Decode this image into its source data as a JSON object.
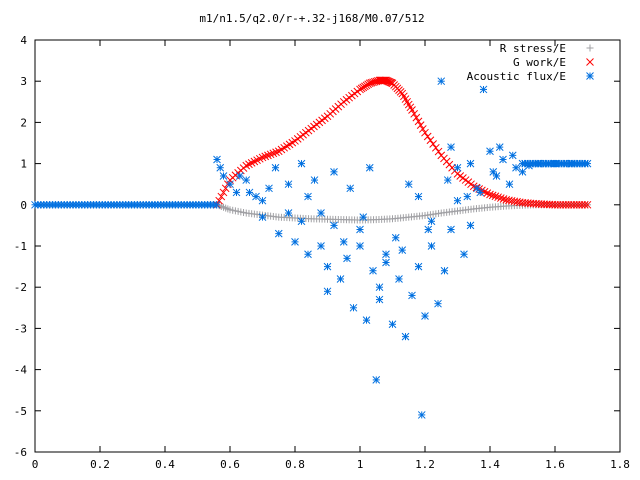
{
  "chart_data": {
    "type": "scatter",
    "title": "m1/n1.5/q2.0/r-+.32-j168/M0.07/512",
    "xlabel": "",
    "ylabel": "",
    "xlim": [
      0,
      1.8
    ],
    "ylim": [
      -6,
      4
    ],
    "xticks": [
      "0",
      "0.2",
      "0.4",
      "0.6",
      "0.8",
      "1",
      "1.2",
      "1.4",
      "1.6",
      "1.8"
    ],
    "yticks": [
      "4",
      "3",
      "2",
      "1",
      "0",
      "-1",
      "-2",
      "-3",
      "-4",
      "-5",
      "-6"
    ],
    "grid": false,
    "legend_position": "top-right",
    "series": [
      {
        "name": "R stress/E",
        "marker": "plus",
        "color": "#a0a0a4",
        "x": [
          0.56,
          0.6,
          0.65,
          0.7,
          0.75,
          0.8,
          0.85,
          0.9,
          0.95,
          1.0,
          1.05,
          1.1,
          1.15,
          1.2,
          1.25,
          1.3,
          1.35,
          1.4,
          1.45,
          1.5,
          1.55,
          1.6,
          1.65,
          1.7
        ],
        "y": [
          0.0,
          -0.12,
          -0.2,
          -0.25,
          -0.3,
          -0.32,
          -0.34,
          -0.35,
          -0.36,
          -0.37,
          -0.36,
          -0.34,
          -0.3,
          -0.26,
          -0.2,
          -0.15,
          -0.1,
          -0.06,
          -0.03,
          -0.01,
          0.0,
          0.0,
          0.0,
          0.0
        ]
      },
      {
        "name": "G work/E",
        "marker": "cross",
        "color": "#ff0000",
        "x": [
          0.56,
          0.6,
          0.65,
          0.7,
          0.75,
          0.8,
          0.85,
          0.9,
          0.95,
          1.0,
          1.03,
          1.06,
          1.08,
          1.1,
          1.13,
          1.16,
          1.2,
          1.25,
          1.3,
          1.35,
          1.4,
          1.45,
          1.5,
          1.55,
          1.6,
          1.65,
          1.7
        ],
        "y": [
          0.0,
          0.6,
          0.95,
          1.15,
          1.3,
          1.55,
          1.85,
          2.15,
          2.5,
          2.8,
          2.95,
          3.02,
          3.02,
          2.95,
          2.7,
          2.3,
          1.75,
          1.2,
          0.75,
          0.45,
          0.25,
          0.12,
          0.05,
          0.02,
          0.0,
          0.0,
          0.0
        ]
      },
      {
        "name": "Acoustic flux/E",
        "marker": "star",
        "color": "#0070e0",
        "x": [
          0.56,
          0.57,
          0.58,
          0.6,
          0.62,
          0.65,
          0.68,
          0.7,
          0.72,
          0.75,
          0.78,
          0.8,
          0.82,
          0.84,
          0.86,
          0.88,
          0.9,
          0.92,
          0.94,
          0.96,
          0.98,
          1.0,
          1.02,
          1.04,
          1.05,
          1.06,
          1.08,
          1.1,
          1.12,
          1.14,
          1.16,
          1.18,
          1.19,
          1.2,
          1.22,
          1.24,
          1.25,
          1.26,
          1.28,
          1.3,
          1.32,
          1.34,
          1.36,
          1.38,
          1.4,
          1.42,
          1.44,
          1.46,
          1.48,
          1.5,
          1.52,
          1.55,
          1.58,
          1.6,
          1.65,
          1.7,
          0.66,
          0.74,
          0.84,
          0.92,
          1.0,
          1.08,
          1.15,
          1.22,
          1.3,
          1.37,
          1.43,
          0.7,
          0.78,
          0.88,
          0.97,
          1.03,
          1.11,
          1.18,
          1.27,
          1.34,
          1.41,
          1.47,
          0.63,
          0.82,
          0.9,
          0.95,
          1.01,
          1.06,
          1.13,
          1.21,
          1.28,
          1.33
        ],
        "y": [
          1.1,
          0.9,
          0.7,
          0.5,
          0.3,
          0.6,
          0.2,
          -0.3,
          0.4,
          -0.7,
          -0.2,
          -0.9,
          -0.4,
          -1.2,
          0.6,
          -1.0,
          -2.1,
          -0.5,
          -1.8,
          -1.3,
          -2.5,
          -1.0,
          -2.8,
          -1.6,
          -4.25,
          -2.3,
          -1.4,
          -2.9,
          -1.8,
          -3.2,
          -2.2,
          -1.5,
          -5.1,
          -2.7,
          -1.0,
          -2.4,
          3.0,
          -1.6,
          -0.6,
          0.1,
          -1.2,
          1.0,
          0.4,
          2.8,
          1.3,
          0.7,
          1.1,
          0.5,
          0.9,
          0.8,
          0.95,
          1.0,
          1.0,
          1.0,
          1.0,
          1.0,
          0.3,
          0.9,
          0.2,
          0.8,
          -0.6,
          -1.2,
          0.5,
          -0.4,
          0.9,
          0.3,
          1.4,
          0.1,
          0.5,
          -0.2,
          0.4,
          0.9,
          -0.8,
          0.2,
          0.6,
          -0.5,
          0.8,
          1.2,
          0.7,
          1.0,
          -1.5,
          -0.9,
          -0.3,
          -2.0,
          -1.1,
          -0.6,
          1.4,
          0.2
        ]
      }
    ]
  }
}
